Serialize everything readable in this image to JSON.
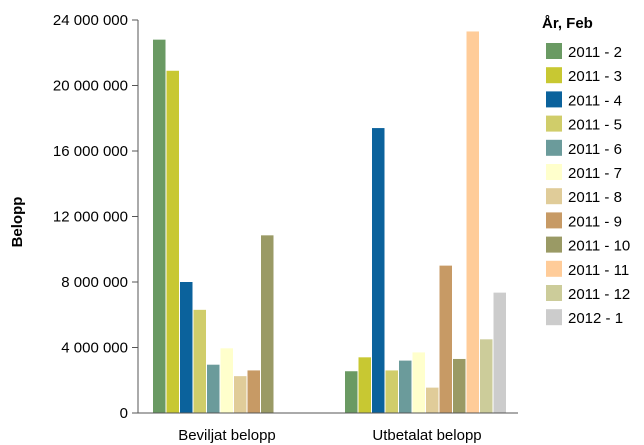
{
  "chart_data": {
    "type": "bar",
    "categories": [
      "Beviljat belopp",
      "Utbetalat belopp"
    ],
    "ylabel": "Belopp",
    "ylim": [
      0,
      24000000
    ],
    "yticks": [
      0,
      4000000,
      8000000,
      12000000,
      16000000,
      20000000,
      24000000
    ],
    "ytick_labels": [
      "0",
      "4 000 000",
      "8 000 000",
      "12 000 000",
      "16 000 000",
      "20 000 000",
      "24 000 000"
    ],
    "legend_title": "År, Feb",
    "legend_position": "right",
    "grid": false,
    "series": [
      {
        "name": "2011 - 2",
        "color": "#6a9a63",
        "values": [
          22800000,
          2550000
        ]
      },
      {
        "name": "2011 - 3",
        "color": "#c8c832",
        "values": [
          20900000,
          3400000
        ]
      },
      {
        "name": "2011 - 4",
        "color": "#0b629c",
        "values": [
          8000000,
          17400000
        ]
      },
      {
        "name": "2011 - 5",
        "color": "#d0cd6a",
        "values": [
          6300000,
          2600000
        ]
      },
      {
        "name": "2011 - 6",
        "color": "#6b9b9b",
        "values": [
          2950000,
          3200000
        ]
      },
      {
        "name": "2011 - 7",
        "color": "#ffffcc",
        "values": [
          3950000,
          3700000
        ]
      },
      {
        "name": "2011 - 8",
        "color": "#e0cc99",
        "values": [
          2250000,
          1550000
        ]
      },
      {
        "name": "2011 - 9",
        "color": "#c79a65",
        "values": [
          2600000,
          9000000
        ]
      },
      {
        "name": "2011 - 10",
        "color": "#9a9a65",
        "values": [
          10850000,
          3300000
        ]
      },
      {
        "name": "2011 - 11",
        "color": "#ffcc99",
        "values": [
          0,
          23300000
        ]
      },
      {
        "name": "2011 - 12",
        "color": "#cccc9a",
        "values": [
          0,
          4500000
        ]
      },
      {
        "name": "2012 - 1",
        "color": "#cccccc",
        "values": [
          0,
          7350000
        ]
      }
    ]
  }
}
